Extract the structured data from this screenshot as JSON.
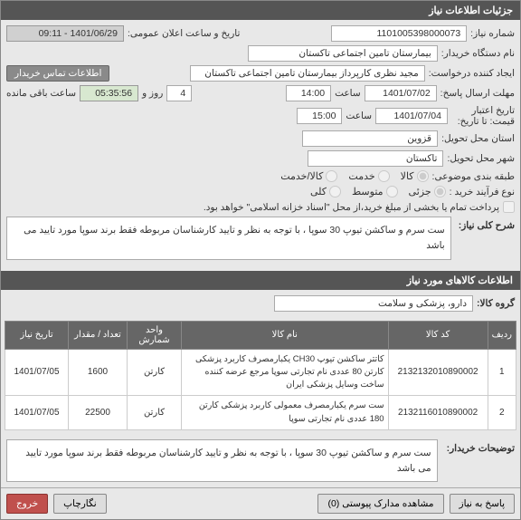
{
  "panel_title": "جزئیات اطلاعات نیاز",
  "labels": {
    "need_no": "شماره نیاز:",
    "buyer_org": "نام دستگاه خریدار:",
    "requester": "ایجاد کننده درخواست:",
    "response_deadline": "مهلت ارسال پاسخ:",
    "valid_from": "تاریخ اعتبار قیمت: تا تاریخ:",
    "province": "استان محل تحویل:",
    "city": "شهر محل تحویل:",
    "classification": "طبقه بندی موضوعی:",
    "purchase_type": "نوع فرآیند خرید :",
    "announce_datetime": "تاریخ و ساعت اعلان عمومی:",
    "contact_info": "اطلاعات تماس خریدار",
    "hour": "ساعت",
    "and_day": "روز و",
    "remaining": "ساعت باقی مانده",
    "payment_note": "پرداخت تمام یا بخشی از مبلغ خرید،از محل \"اسناد خزانه اسلامی\" خواهد بود.",
    "general_desc": "شرح کلی نیاز:",
    "goods_section": "اطلاعات کالاهای مورد نیاز",
    "goods_group": "گروه کالا:",
    "buyer_notes": "توضیحات خریدار:",
    "reply": "پاسخ به نیاز",
    "attachments": "مشاهده مدارک پیوستی (0)",
    "print": "نگارچاپ",
    "exit": "خروج"
  },
  "values": {
    "need_no": "1101005398000073",
    "buyer_org": "بیمارستان تامین اجتماعی تاکستان",
    "requester": "مجید نظری کارپرداز بیمارستان تامین اجتماعی تاکستان",
    "deadline_date": "1401/07/02",
    "deadline_time": "14:00",
    "days_remaining": "4",
    "time_remaining": "05:35:56",
    "valid_date": "1401/07/04",
    "valid_time": "15:00",
    "announce": "1401/06/29 - 09:11",
    "province": "قزوین",
    "city": "تاکستان",
    "goods_group": "دارو، پزشکی و سلامت",
    "desc": "ست سرم و ساکشن تیوپ 30 سوپا ، با توجه به نظر و تایید کارشناسان مربوطه فقط برند سوپا مورد تایید می باشد",
    "buyer_notes_text": "ست سرم و ساکشن تیوپ 30 سوپا ، با توجه به نظر و تایید کارشناسان مربوطه فقط برند سوپا مورد تایید می باشد"
  },
  "radios": {
    "class": {
      "opt1": "کالا",
      "opt2": "خدمت",
      "opt3": "کالا/خدمت"
    },
    "purchase": {
      "opt1": "جزئی",
      "opt2": "متوسط",
      "opt3": "کلی"
    }
  },
  "table": {
    "headers": {
      "row": "ردیف",
      "code": "کد کالا",
      "name": "نام کالا",
      "unit": "واحد شمارش",
      "qty": "تعداد / مقدار",
      "date": "تاریخ نیاز"
    },
    "rows": [
      {
        "idx": "1",
        "code": "2132132010890002",
        "name": "کاتتر ساکشن تیوپ CH30 یکبارمصرف کاربرد پزشکی کارتن 80 عددی نام تجارتی سوپا مرجع عرضه کننده ساخت وسایل پزشکی ایران",
        "unit": "کارتن",
        "qty": "1600",
        "date": "1401/07/05"
      },
      {
        "idx": "2",
        "code": "2132116010890002",
        "name": "ست سرم یکبارمصرف معمولی کاربرد پزشکی کارتن 180 عددی نام تجارتی سوپا",
        "unit": "کارتن",
        "qty": "22500",
        "date": "1401/07/05"
      }
    ]
  },
  "watermark": "ستاد ۰۲۱-۴۱۹۳۴"
}
